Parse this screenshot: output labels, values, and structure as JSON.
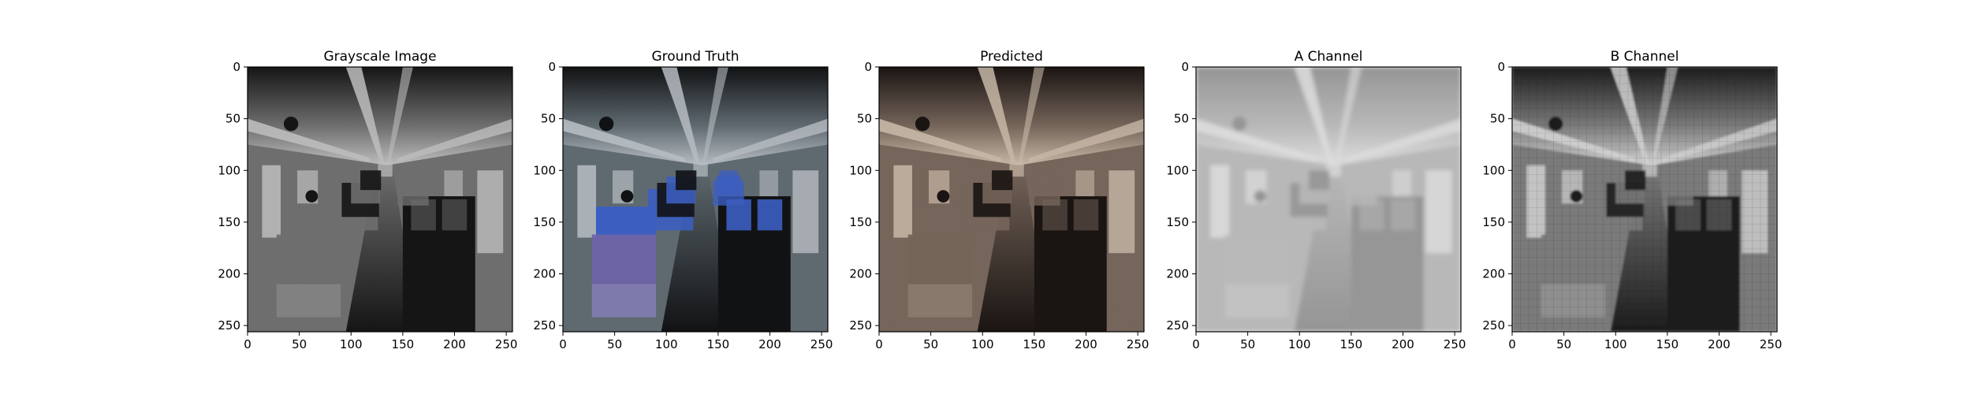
{
  "chart_data": [
    {
      "type": "image",
      "title": "Grayscale Image",
      "mode": "gray",
      "xlim": [
        0,
        256
      ],
      "ylim": [
        256,
        0
      ],
      "xticks": [
        0,
        50,
        100,
        150,
        200,
        250
      ],
      "yticks": [
        0,
        50,
        100,
        150,
        200,
        250
      ],
      "content": "train car interior, grayscale",
      "colors": {
        "light": "#bdbdbd",
        "mid": "#6e6e6e",
        "dark": "#151515"
      }
    },
    {
      "type": "image",
      "title": "Ground Truth",
      "mode": "color",
      "xlim": [
        0,
        256
      ],
      "ylim": [
        256,
        0
      ],
      "xticks": [
        0,
        50,
        100,
        150,
        200,
        250
      ],
      "yticks": [
        0,
        50,
        100,
        150,
        200,
        250
      ],
      "content": "train car interior with blue seats",
      "colors": {
        "light": "#b6bcc2",
        "mid": "#5f6a70",
        "dark": "#111214",
        "seat": "#3c5ec0",
        "seatLow": "#6e64a8"
      }
    },
    {
      "type": "image",
      "title": "Predicted",
      "mode": "sepia",
      "xlim": [
        0,
        256
      ],
      "ylim": [
        256,
        0
      ],
      "xticks": [
        0,
        50,
        100,
        150,
        200,
        250
      ],
      "yticks": [
        0,
        50,
        100,
        150,
        200,
        250
      ],
      "content": "train car interior, brownish tint",
      "colors": {
        "light": "#c7b7a6",
        "mid": "#75655a",
        "dark": "#1a1412"
      }
    },
    {
      "type": "image",
      "title": "A Channel",
      "mode": "achannel",
      "xlim": [
        0,
        256
      ],
      "ylim": [
        256,
        0
      ],
      "xticks": [
        0,
        50,
        100,
        150,
        200,
        250
      ],
      "yticks": [
        0,
        50,
        100,
        150,
        200,
        250
      ],
      "content": "blurred light-gray channel map",
      "colors": {
        "light": "#dedede",
        "mid": "#a5a5a5",
        "dark": "#6f6f6f"
      }
    },
    {
      "type": "image",
      "title": "B Channel",
      "mode": "bchannel",
      "xlim": [
        0,
        256
      ],
      "ylim": [
        256,
        0
      ],
      "xticks": [
        0,
        50,
        100,
        150,
        200,
        250
      ],
      "yticks": [
        0,
        50,
        100,
        150,
        200,
        250
      ],
      "content": "high-contrast channel map",
      "colors": {
        "light": "#d0d0d0",
        "mid": "#7a7a7a",
        "dark": "#1c1c1c"
      }
    }
  ]
}
